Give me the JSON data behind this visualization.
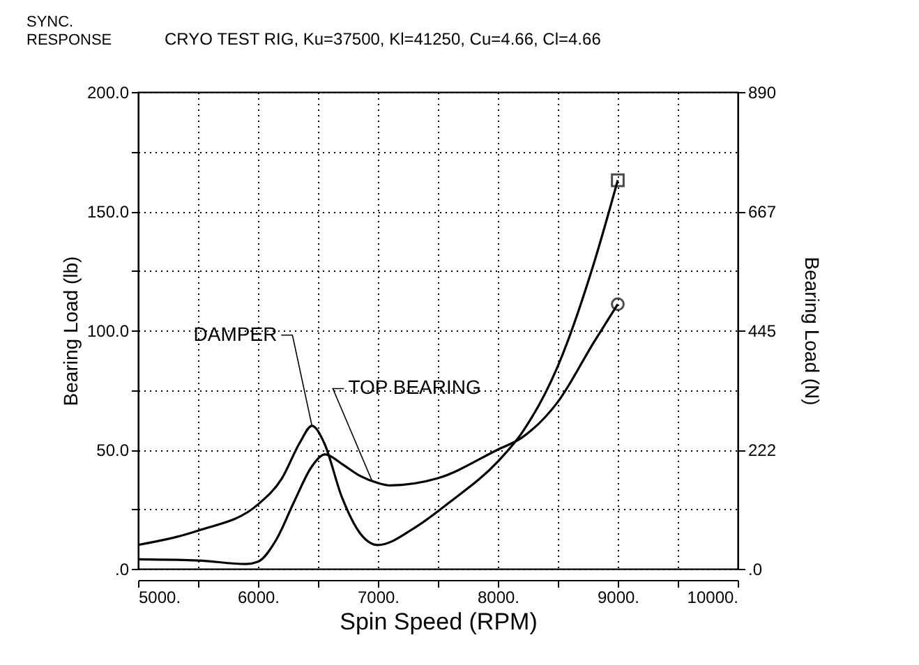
{
  "chart_data": {
    "type": "line",
    "title": "SYNC. RESPONSE",
    "subtitle": "CRYO TEST RIG, Ku=37500, Kl=41250, Cu=4.66, Cl=4.66",
    "xlabel": "Spin Speed (RPM)",
    "ylabel": "Bearing Load (lb)",
    "y2label": "Bearing Load (N)",
    "series": [
      {
        "color": "#000000",
        "x": [
          5000,
          5500,
          6000,
          6200,
          6350,
          6450,
          6550,
          6700,
          6850,
          7000,
          7300,
          7600,
          8000,
          8200,
          8500,
          8800,
          9000
        ],
        "values": [
          10,
          16,
          27,
          38,
          53,
          60,
          53,
          30,
          15,
          10,
          17,
          28,
          45,
          57,
          85,
          128,
          163
        ]
      },
      {
        "color": "#000000",
        "x": [
          5000,
          5500,
          5900,
          6000,
          6150,
          6300,
          6450,
          6560,
          6700,
          6850,
          7000,
          7100,
          7500,
          8000,
          8200,
          8500,
          8800,
          9000
        ],
        "values": [
          4,
          3.5,
          2,
          3,
          12,
          28,
          43,
          48,
          44,
          39,
          36,
          35,
          38,
          50,
          55,
          70,
          95,
          111
        ]
      },
      {
        "type": "scatter",
        "marker": "square",
        "color": "#000000",
        "x": [
          9000
        ],
        "values": [
          163
        ]
      },
      {
        "type": "scatter",
        "marker": "circle",
        "color": "#000000",
        "x": [
          9000
        ],
        "values": [
          111
        ]
      }
    ],
    "annotations": [
      {
        "text": "DAMPER",
        "x": 6450,
        "y": 60
      },
      {
        "text": "TOP BEARING",
        "x": 6950,
        "y": 37
      }
    ],
    "xlim": [
      5000,
      10000
    ],
    "xticks": [
      {
        "value": 5000,
        "label": "5000."
      },
      {
        "value": 5500,
        "label": null
      },
      {
        "value": 6000,
        "label": "6000."
      },
      {
        "value": 6500,
        "label": null
      },
      {
        "value": 7000,
        "label": "7000."
      },
      {
        "value": 7500,
        "label": null
      },
      {
        "value": 8000,
        "label": "8000."
      },
      {
        "value": 8500,
        "label": null
      },
      {
        "value": 9000,
        "label": "9000."
      },
      {
        "value": 9500,
        "label": null
      },
      {
        "value": 10000,
        "label": "10000."
      }
    ],
    "ylim": [
      0,
      200
    ],
    "yticks": [
      {
        "value": 0,
        "label": ".0"
      },
      {
        "value": 25,
        "label": null
      },
      {
        "value": 50,
        "label": "50.0"
      },
      {
        "value": 75,
        "label": null
      },
      {
        "value": 100,
        "label": "100.0"
      },
      {
        "value": 125,
        "label": null
      },
      {
        "value": 150,
        "label": "150.0"
      },
      {
        "value": 175,
        "label": null
      },
      {
        "value": 200,
        "label": "200.0"
      }
    ],
    "y2lim": [
      0,
      890
    ],
    "y2ticks": [
      {
        "value": 0,
        "label": ".0"
      },
      222,
      445,
      667,
      890
    ],
    "grid": true,
    "line_style": "solid",
    "marker": "none"
  }
}
